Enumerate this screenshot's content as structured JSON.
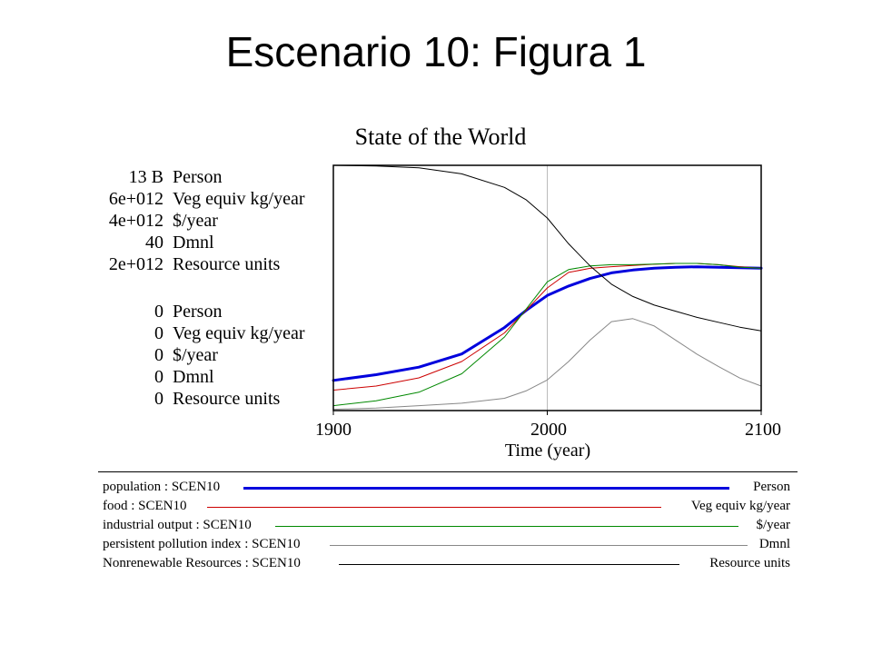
{
  "slide": {
    "title": "Escenario 10: Figura 1"
  },
  "chart_data": {
    "type": "line",
    "title": "State of the World",
    "xlabel": "Time (year)",
    "xlim": [
      1900,
      2100
    ],
    "x_ticks": [
      "1900",
      "2000",
      "2100"
    ],
    "grid": "vertical line at 2000",
    "scales_max": [
      {
        "value": "13 B",
        "unit": "Person"
      },
      {
        "value": "6e+012",
        "unit": "Veg equiv kg/year"
      },
      {
        "value": "4e+012",
        "unit": "$/year"
      },
      {
        "value": "40",
        "unit": "Dmnl"
      },
      {
        "value": "2e+012",
        "unit": "Resource units"
      }
    ],
    "scales_min": [
      {
        "value": "0",
        "unit": "Person"
      },
      {
        "value": "0",
        "unit": "Veg equiv kg/year"
      },
      {
        "value": "0",
        "unit": "$/year"
      },
      {
        "value": "0",
        "unit": "Dmnl"
      },
      {
        "value": "0",
        "unit": "Resource units"
      }
    ],
    "x": [
      1900,
      1920,
      1940,
      1960,
      1980,
      1990,
      2000,
      2010,
      2020,
      2030,
      2040,
      2050,
      2060,
      2070,
      2080,
      2090,
      2100
    ],
    "series": [
      {
        "name": "population : SCEN10",
        "unit": "Person",
        "color": "#0000dd",
        "width": 3,
        "values": [
          1600000000.0,
          1900000000.0,
          2300000000.0,
          3000000000.0,
          4400000000.0,
          5300000000.0,
          6100000000.0,
          6600000000.0,
          7000000000.0,
          7300000000.0,
          7450000000.0,
          7550000000.0,
          7600000000.0,
          7620000000.0,
          7600000000.0,
          7570000000.0,
          7550000000.0
        ]
      },
      {
        "name": "food : SCEN10",
        "unit": "Veg equiv kg/year",
        "color": "#cc0000",
        "width": 1,
        "values": [
          500000000000.0,
          600000000000.0,
          800000000000.0,
          1200000000000.0,
          1900000000000.0,
          2450000000000.0,
          3000000000000.0,
          3380000000000.0,
          3480000000000.0,
          3520000000000.0,
          3550000000000.0,
          3580000000000.0,
          3600000000000.0,
          3600000000000.0,
          3570000000000.0,
          3520000000000.0,
          3480000000000.0
        ]
      },
      {
        "name": "industrial output : SCEN10",
        "unit": "$/year",
        "color": "#008800",
        "width": 1,
        "values": [
          80000000000.0,
          160000000000.0,
          300000000000.0,
          600000000000.0,
          1200000000000.0,
          1650000000000.0,
          2100000000000.0,
          2300000000000.0,
          2360000000000.0,
          2380000000000.0,
          2380000000000.0,
          2390000000000.0,
          2400000000000.0,
          2400000000000.0,
          2380000000000.0,
          2340000000000.0,
          2320000000000.0
        ]
      },
      {
        "name": "persistent pollution index : SCEN10",
        "unit": "Dmnl",
        "color": "#888888",
        "width": 1,
        "values": [
          0.2,
          0.4,
          0.8,
          1.2,
          2.0,
          3.2,
          5.0,
          8.0,
          11.5,
          14.5,
          15.0,
          13.8,
          11.5,
          9.2,
          7.2,
          5.3,
          4.0
        ]
      },
      {
        "name": "Nonrenewable Resources : SCEN10",
        "unit": "Resource units",
        "color": "#000000",
        "width": 1,
        "values": [
          2000000000000.0,
          1995000000000.0,
          1980000000000.0,
          1930000000000.0,
          1820000000000.0,
          1720000000000.0,
          1570000000000.0,
          1360000000000.0,
          1180000000000.0,
          1030000000000.0,
          930000000000.0,
          860000000000.0,
          810000000000.0,
          760000000000.0,
          720000000000.0,
          680000000000.0,
          650000000000.0
        ]
      }
    ],
    "series_max": [
      13000000000.0,
      6000000000000.0,
      4000000000000.0,
      40,
      2000000000000.0
    ]
  }
}
